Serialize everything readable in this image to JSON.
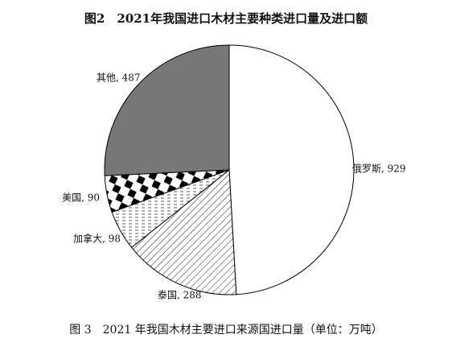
{
  "chart_data": {
    "type": "pie",
    "title": "图2　2021年我国进口木材主要种类进口量及进口额",
    "caption": "图 3　2021 年我国木材主要进口来源国进口量（单位：万吨）",
    "values": [
      929,
      288,
      98,
      90,
      487
    ],
    "value_labels": [
      "俄罗斯, 929",
      "泰国, 288",
      "加拿大, 98",
      "美国, 90",
      "其他, 487"
    ],
    "colors": [
      "#ffffff",
      "url(#hatch)",
      "url(#dash)",
      "url(#diamond)",
      "#777777"
    ]
  }
}
